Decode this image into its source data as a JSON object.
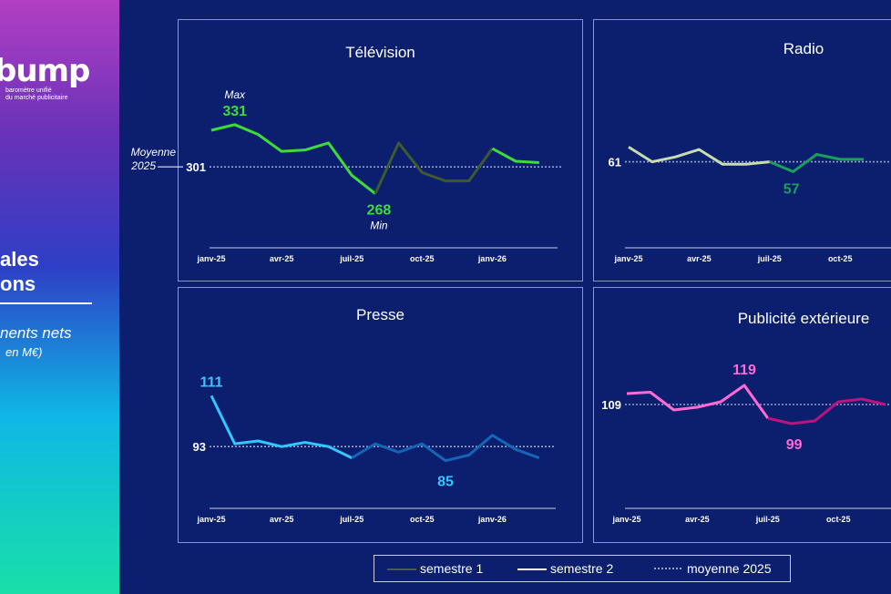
{
  "sidebar": {
    "logo": "bump",
    "logo_sub": "baromètre unifié\ndu marché publicitaire",
    "title": "ales\nons",
    "subtitle": "nents nets",
    "subtitle2": "en M€)"
  },
  "legend": {
    "s1": "semestre 1",
    "s2": "semestre 2",
    "avg": "moyenne 2025",
    "colors": {
      "s1": "#4b5a58",
      "s2": "#ffffff"
    }
  },
  "chart_data": [
    {
      "type": "line",
      "title": "Télévision",
      "xticks": [
        "janv-25",
        "avr-25",
        "juil-25",
        "oct-25",
        "janv-26"
      ],
      "x": [
        "janv-25",
        "févr-25",
        "mars-25",
        "avr-25",
        "mai-25",
        "juin-25",
        "juil-25",
        "août-25",
        "sept-25",
        "oct-25",
        "nov-25",
        "déc-25",
        "janv-26",
        "févr-26",
        "mars-26"
      ],
      "values": [
        327,
        331,
        324,
        312,
        313,
        318,
        295,
        282,
        318,
        297,
        291,
        291,
        314,
        305,
        304
      ],
      "n_semestre1": 6,
      "ylim": [
        250,
        360
      ],
      "average": 301,
      "average_label": "301",
      "average_caption": "Moyenne\n2025",
      "max_label": "331",
      "max_caption": "Max",
      "min_label": "268",
      "min_caption": "Min",
      "colors": {
        "s1": "#3ddc3a",
        "s2": "#3ddc3a",
        "s1_past": "#3ddc3a",
        "s2_dim": "#3f5a2e",
        "label": "#3ddc3a"
      }
    },
    {
      "type": "line",
      "title": "Radio",
      "xticks": [
        "janv-25",
        "avr-25",
        "juil-25",
        "oct-25"
      ],
      "x": [
        "janv-25",
        "févr-25",
        "mars-25",
        "avr-25",
        "mai-25",
        "juin-25",
        "juil-25",
        "août-25",
        "sept-25",
        "oct-25",
        "nov-25"
      ],
      "values": [
        64,
        61,
        62,
        63.5,
        60.5,
        60.5,
        61,
        59,
        62.5,
        61.5,
        61.5
      ],
      "n_semestre1": 6,
      "ylim": [
        50,
        75
      ],
      "average": 61,
      "average_label": "61",
      "min_label": "57",
      "colors": {
        "s1": "#c8dcae",
        "s2": "#1aa05a",
        "label": "#1aa05a"
      }
    },
    {
      "type": "line",
      "title": "Presse",
      "xticks": [
        "janv-25",
        "avr-25",
        "juil-25",
        "oct-25",
        "janv-26"
      ],
      "x": [
        "janv-25",
        "févr-25",
        "mars-25",
        "avr-25",
        "mai-25",
        "juin-25",
        "juil-25",
        "août-25",
        "sept-25",
        "oct-25",
        "nov-25",
        "déc-25",
        "janv-26",
        "févr-26",
        "mars-26"
      ],
      "values": [
        111,
        94,
        95,
        93,
        94.5,
        93,
        89,
        94,
        91,
        94,
        88,
        90,
        97,
        92,
        89
      ],
      "n_semestre1": 6,
      "ylim": [
        75,
        125
      ],
      "average": 93,
      "average_label": "93",
      "max_label": "111",
      "min_label": "85",
      "colors": {
        "s1": "#33c7ff",
        "s2": "#1565b8",
        "label": "#33c7ff"
      }
    },
    {
      "type": "line",
      "title": "Publicité extérieure",
      "xticks": [
        "janv-25",
        "avr-25",
        "juil-25",
        "oct-25"
      ],
      "x": [
        "janv-25",
        "févr-25",
        "mars-25",
        "avr-25",
        "mai-25",
        "juin-25",
        "juil-25",
        "août-25",
        "sept-25",
        "oct-25",
        "nov-25",
        "déc-25"
      ],
      "values": [
        113,
        113.5,
        107,
        108,
        110,
        116,
        104,
        102,
        103,
        110,
        111,
        109
      ],
      "n_semestre1": 6,
      "ylim": [
        95,
        125
      ],
      "average": 109,
      "average_label": "109",
      "max_label": "119",
      "min_label": "99",
      "colors": {
        "s1": "#ff6ad5",
        "s2": "#c0117f",
        "label": "#ff6ad5"
      }
    }
  ]
}
